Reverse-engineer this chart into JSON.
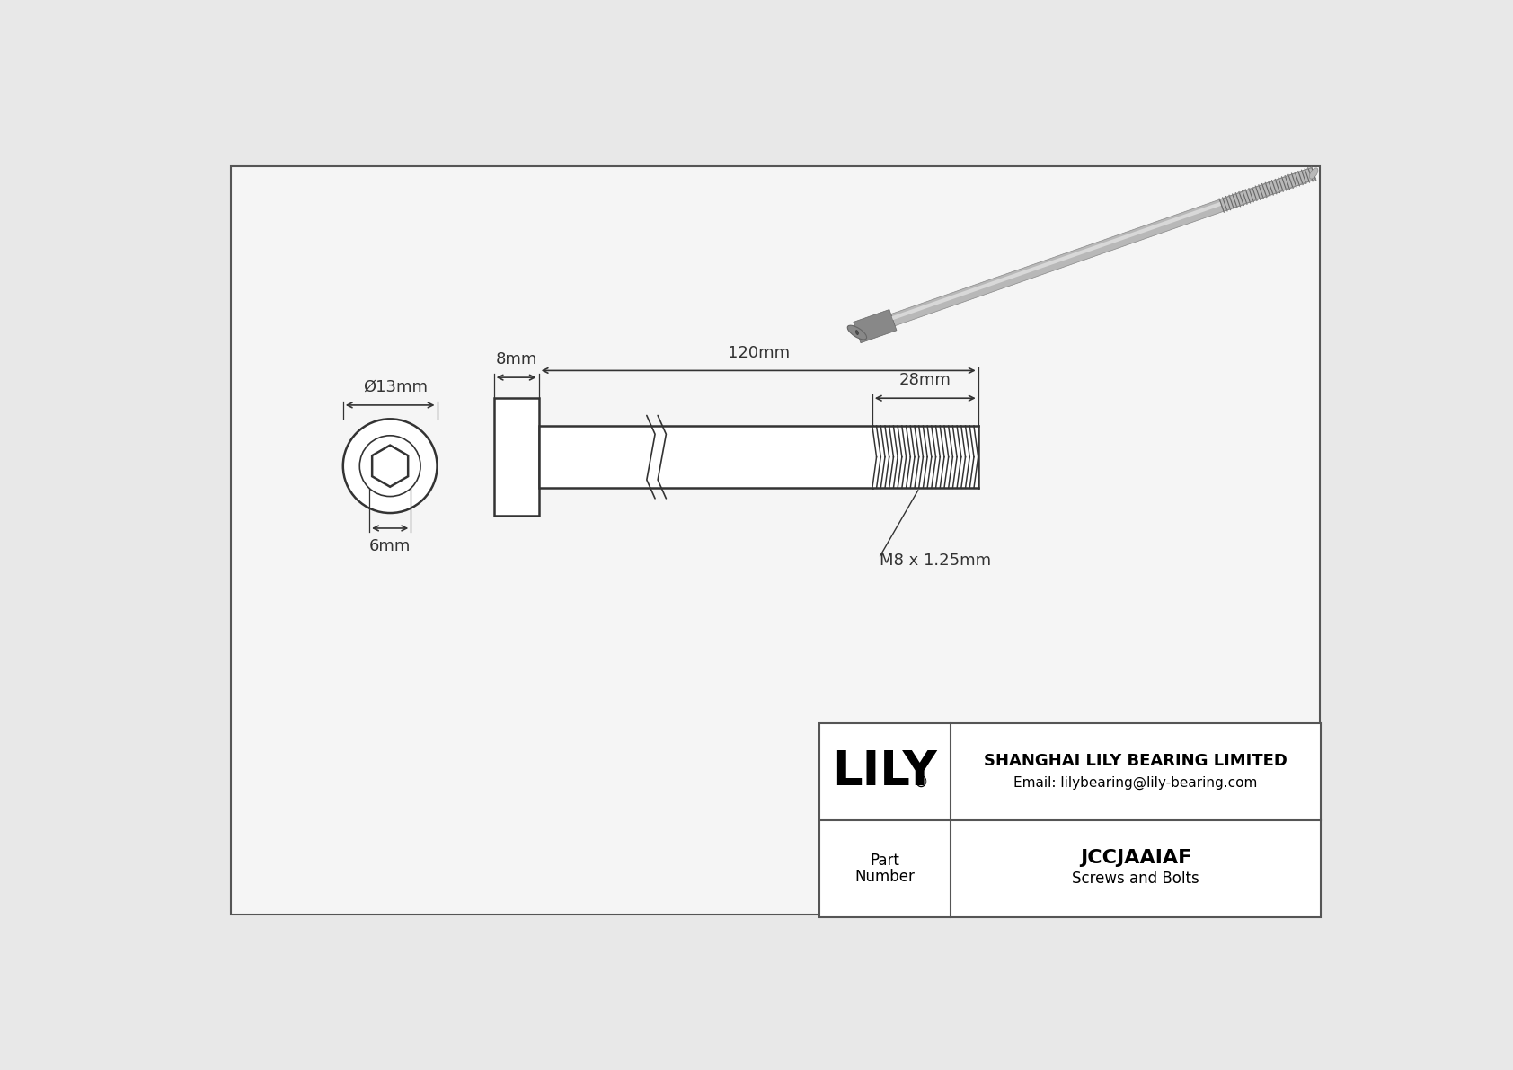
{
  "bg_color": "#e8e8e8",
  "drawing_bg": "#f5f5f5",
  "line_color": "#333333",
  "border_color": "#555555",
  "title_company": "SHANGHAI LILY BEARING LIMITED",
  "title_email": "Email: lilybearing@lily-bearing.com",
  "part_label": "Part\nNumber",
  "part_number": "JCCJAAIAF",
  "part_category": "Screws and Bolts",
  "brand": "LILY",
  "dim_diameter": "Ø13mm",
  "dim_head_width": "8mm",
  "dim_total_length": "120mm",
  "dim_thread_length": "28mm",
  "dim_hex_socket": "6mm",
  "dim_thread_label": "M8 x 1.25mm",
  "photo_color_body": "#b8b8b8",
  "photo_color_dark": "#888888",
  "photo_color_light": "#d8d8d8",
  "photo_color_darker": "#666666"
}
